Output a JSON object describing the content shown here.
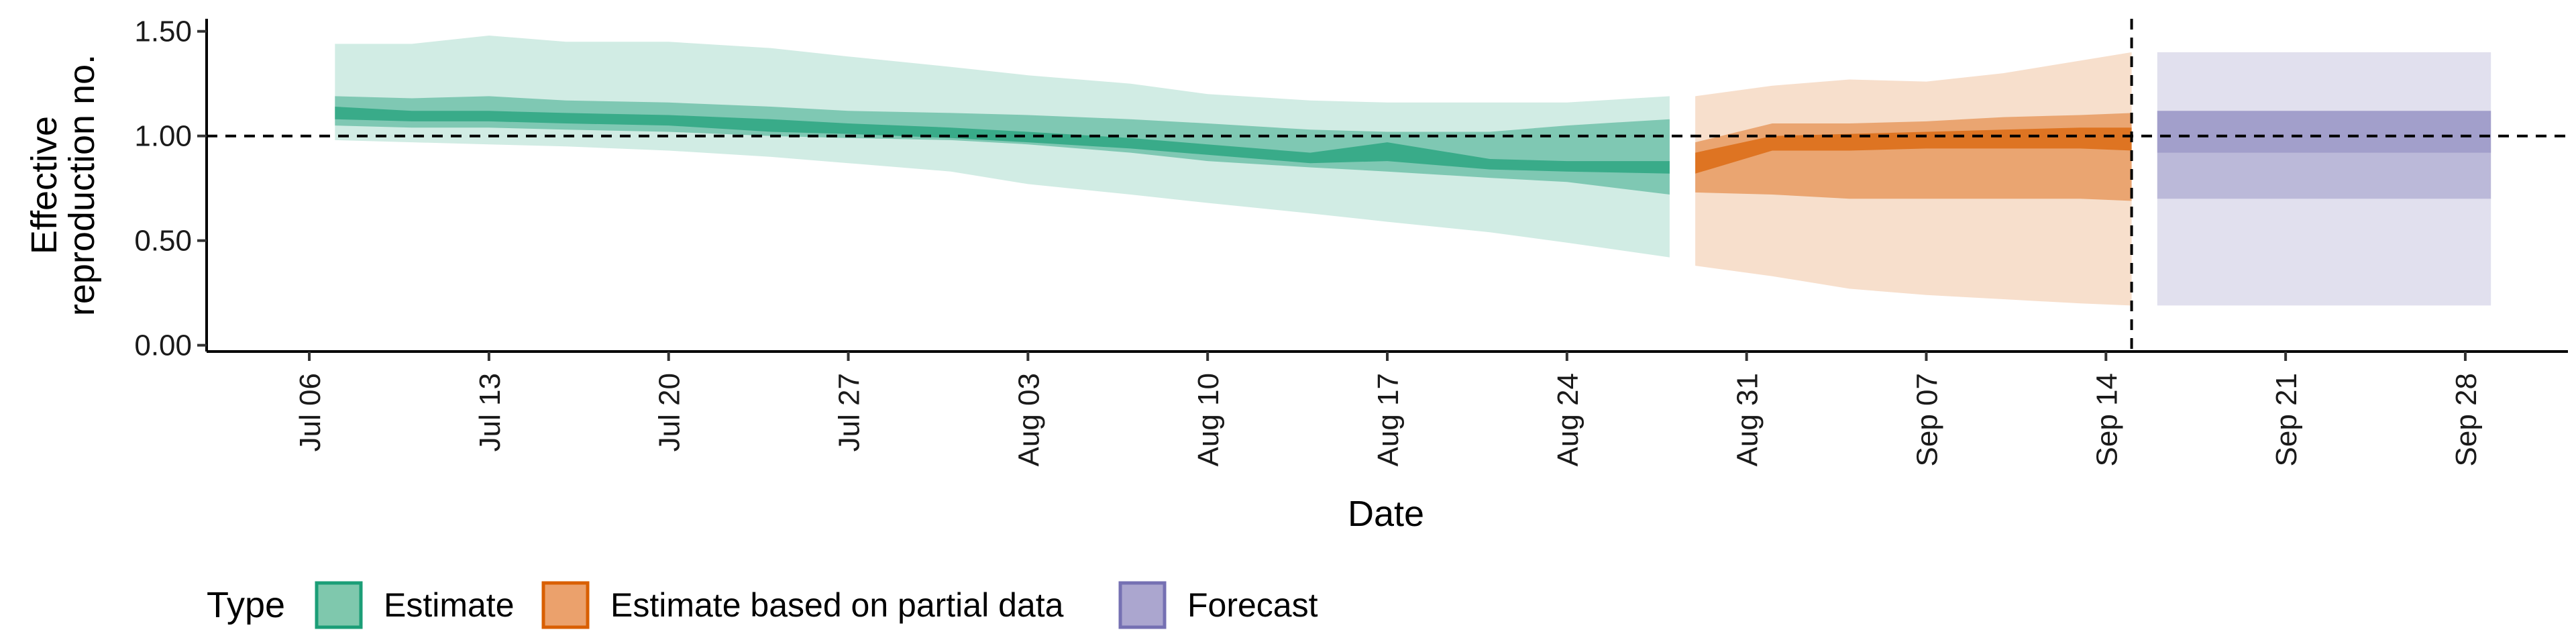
{
  "chart_data": {
    "type": "area",
    "xlabel": "Date",
    "ylabel": [
      "Effective",
      "reproduction no."
    ],
    "x_axis": {
      "start": "2020-07-02",
      "end": "2020-10-02",
      "ticks": [
        "2020-07-06",
        "2020-07-13",
        "2020-07-20",
        "2020-07-27",
        "2020-08-03",
        "2020-08-10",
        "2020-08-17",
        "2020-08-24",
        "2020-08-31",
        "2020-09-07",
        "2020-09-14",
        "2020-09-21",
        "2020-09-28"
      ],
      "tick_labels": [
        "Jul 06",
        "Jul 13",
        "Jul 20",
        "Jul 27",
        "Aug 03",
        "Aug 10",
        "Aug 17",
        "Aug 24",
        "Aug 31",
        "Sep 07",
        "Sep 14",
        "Sep 21",
        "Sep 28"
      ]
    },
    "y_axis": {
      "ylim": [
        -0.03,
        1.56
      ],
      "ticks": [
        0,
        0.5,
        1,
        1.5
      ],
      "tick_labels": [
        "0.00",
        "0.50",
        "1.00",
        "1.50"
      ]
    },
    "reference_line_y": 1.0,
    "vline_x": "2020-09-15",
    "grid": false,
    "legend": {
      "title": "Type",
      "position": "bottom-left",
      "items": [
        {
          "label": "Estimate",
          "fill": "#7fc8ad",
          "stroke": "#1b9e77"
        },
        {
          "label": "Estimate based on partial data",
          "fill": "#eba16c",
          "stroke": "#d95f02"
        },
        {
          "label": "Forecast",
          "fill": "#aba6cf",
          "stroke": "#7570b3"
        }
      ]
    },
    "series": [
      {
        "name": "Estimate",
        "color": "#1b9e77",
        "bands": [
          {
            "level": "90%",
            "opacity": 0.2,
            "points": [
              [
                "2020-07-07",
                0.98,
                1.44
              ],
              [
                "2020-07-10",
                0.97,
                1.44
              ],
              [
                "2020-07-13",
                0.96,
                1.48
              ],
              [
                "2020-07-16",
                0.95,
                1.45
              ],
              [
                "2020-07-20",
                0.93,
                1.45
              ],
              [
                "2020-07-24",
                0.9,
                1.42
              ],
              [
                "2020-07-27",
                0.87,
                1.38
              ],
              [
                "2020-07-31",
                0.83,
                1.33
              ],
              [
                "2020-08-03",
                0.77,
                1.29
              ],
              [
                "2020-08-07",
                0.72,
                1.25
              ],
              [
                "2020-08-10",
                0.68,
                1.2
              ],
              [
                "2020-08-14",
                0.63,
                1.17
              ],
              [
                "2020-08-17",
                0.59,
                1.16
              ],
              [
                "2020-08-21",
                0.54,
                1.16
              ],
              [
                "2020-08-24",
                0.49,
                1.16
              ],
              [
                "2020-08-28",
                0.42,
                1.19
              ]
            ]
          },
          {
            "level": "50%",
            "opacity": 0.45,
            "points": [
              [
                "2020-07-07",
                1.05,
                1.19
              ],
              [
                "2020-07-10",
                1.04,
                1.18
              ],
              [
                "2020-07-13",
                1.04,
                1.19
              ],
              [
                "2020-07-16",
                1.03,
                1.17
              ],
              [
                "2020-07-20",
                1.02,
                1.16
              ],
              [
                "2020-07-24",
                1.0,
                1.14
              ],
              [
                "2020-07-27",
                0.99,
                1.12
              ],
              [
                "2020-07-31",
                0.98,
                1.11
              ],
              [
                "2020-08-03",
                0.96,
                1.1
              ],
              [
                "2020-08-07",
                0.92,
                1.08
              ],
              [
                "2020-08-10",
                0.88,
                1.06
              ],
              [
                "2020-08-14",
                0.85,
                1.03
              ],
              [
                "2020-08-17",
                0.83,
                1.02
              ],
              [
                "2020-08-21",
                0.8,
                1.02
              ],
              [
                "2020-08-24",
                0.78,
                1.05
              ],
              [
                "2020-08-28",
                0.72,
                1.08
              ]
            ]
          },
          {
            "level": "20%",
            "opacity": 0.7,
            "points": [
              [
                "2020-07-07",
                1.08,
                1.14
              ],
              [
                "2020-07-10",
                1.07,
                1.12
              ],
              [
                "2020-07-13",
                1.07,
                1.12
              ],
              [
                "2020-07-16",
                1.06,
                1.11
              ],
              [
                "2020-07-20",
                1.05,
                1.1
              ],
              [
                "2020-07-24",
                1.02,
                1.08
              ],
              [
                "2020-07-27",
                1.01,
                1.06
              ],
              [
                "2020-07-31",
                0.99,
                1.04
              ],
              [
                "2020-08-03",
                0.97,
                1.02
              ],
              [
                "2020-08-07",
                0.94,
                0.99
              ],
              [
                "2020-08-10",
                0.91,
                0.96
              ],
              [
                "2020-08-14",
                0.87,
                0.92
              ],
              [
                "2020-08-17",
                0.88,
                0.97
              ],
              [
                "2020-08-21",
                0.84,
                0.89
              ],
              [
                "2020-08-24",
                0.83,
                0.88
              ],
              [
                "2020-08-28",
                0.82,
                0.88
              ]
            ]
          }
        ]
      },
      {
        "name": "Estimate based on partial data",
        "color": "#d95f02",
        "bands": [
          {
            "level": "90%",
            "opacity": 0.2,
            "points": [
              [
                "2020-08-29",
                0.38,
                1.19
              ],
              [
                "2020-09-01",
                0.33,
                1.24
              ],
              [
                "2020-09-04",
                0.27,
                1.27
              ],
              [
                "2020-09-07",
                0.24,
                1.26
              ],
              [
                "2020-09-10",
                0.22,
                1.3
              ],
              [
                "2020-09-13",
                0.2,
                1.36
              ],
              [
                "2020-09-15",
                0.19,
                1.4
              ]
            ]
          },
          {
            "level": "50%",
            "opacity": 0.45,
            "points": [
              [
                "2020-08-29",
                0.73,
                0.97
              ],
              [
                "2020-09-01",
                0.72,
                1.06
              ],
              [
                "2020-09-04",
                0.7,
                1.06
              ],
              [
                "2020-09-07",
                0.7,
                1.07
              ],
              [
                "2020-09-10",
                0.7,
                1.09
              ],
              [
                "2020-09-13",
                0.7,
                1.1
              ],
              [
                "2020-09-15",
                0.69,
                1.11
              ]
            ]
          },
          {
            "level": "20%",
            "opacity": 0.7,
            "points": [
              [
                "2020-08-29",
                0.82,
                0.92
              ],
              [
                "2020-09-01",
                0.93,
                1.0
              ],
              [
                "2020-09-04",
                0.93,
                1.01
              ],
              [
                "2020-09-07",
                0.94,
                1.02
              ],
              [
                "2020-09-10",
                0.94,
                1.03
              ],
              [
                "2020-09-13",
                0.94,
                1.04
              ],
              [
                "2020-09-15",
                0.93,
                1.04
              ]
            ]
          }
        ]
      },
      {
        "name": "Forecast",
        "color": "#7570b3",
        "bands": [
          {
            "level": "90%",
            "opacity": 0.22,
            "points": [
              [
                "2020-09-16",
                0.19,
                1.4
              ],
              [
                "2020-09-29",
                0.19,
                1.4
              ]
            ]
          },
          {
            "level": "50%",
            "opacity": 0.35,
            "points": [
              [
                "2020-09-16",
                0.7,
                1.12
              ],
              [
                "2020-09-29",
                0.7,
                1.12
              ]
            ]
          },
          {
            "level": "20%",
            "opacity": 0.35,
            "points": [
              [
                "2020-09-16",
                0.92,
                1.12
              ],
              [
                "2020-09-29",
                0.92,
                1.12
              ]
            ]
          }
        ]
      }
    ]
  }
}
